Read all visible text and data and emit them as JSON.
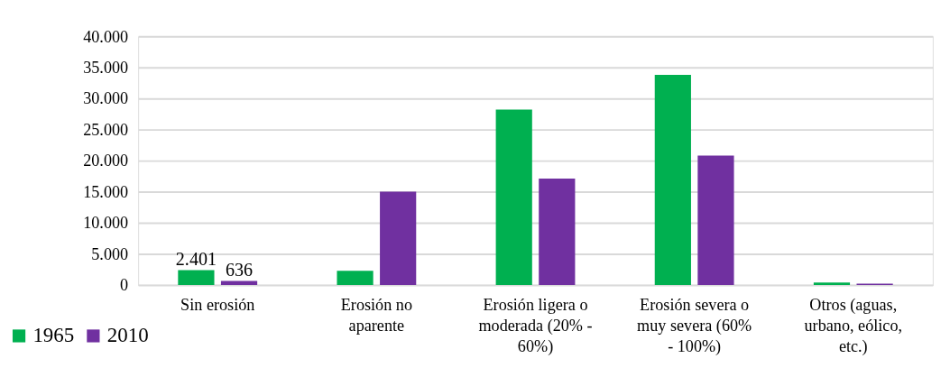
{
  "chart_data": {
    "type": "bar",
    "categories": [
      "Sin erosión",
      "Erosión no aparente",
      "Erosión ligera o moderada (20% - 60%)",
      "Erosión severa o muy severa (60% - 100%)",
      "Otros (aguas, urbano, eólico, etc.)"
    ],
    "series": [
      {
        "name": "1965",
        "color": "#00b050",
        "values": [
          2401,
          2300,
          28200,
          33800,
          400
        ],
        "value_labels": [
          "2.401",
          null,
          null,
          null,
          null
        ]
      },
      {
        "name": "2010",
        "color": "#7030a0",
        "values": [
          636,
          15000,
          17100,
          20800,
          200
        ],
        "value_labels": [
          "636",
          null,
          null,
          null,
          null
        ]
      }
    ],
    "ylim": [
      0,
      40000
    ],
    "yticks": [
      0,
      {
        "value": 5000,
        "label": "5.000"
      },
      {
        "value": 10000,
        "label": "10.000"
      },
      {
        "value": 15000,
        "label": "15.000"
      },
      {
        "value": 20000,
        "label": "20.000"
      },
      {
        "value": 25000,
        "label": "25.000"
      },
      {
        "value": 30000,
        "label": "30.000"
      },
      {
        "value": 35000,
        "label": "35.000"
      },
      {
        "value": 40000,
        "label": "40.000"
      }
    ],
    "grid": "y",
    "legend": "bottom left"
  }
}
